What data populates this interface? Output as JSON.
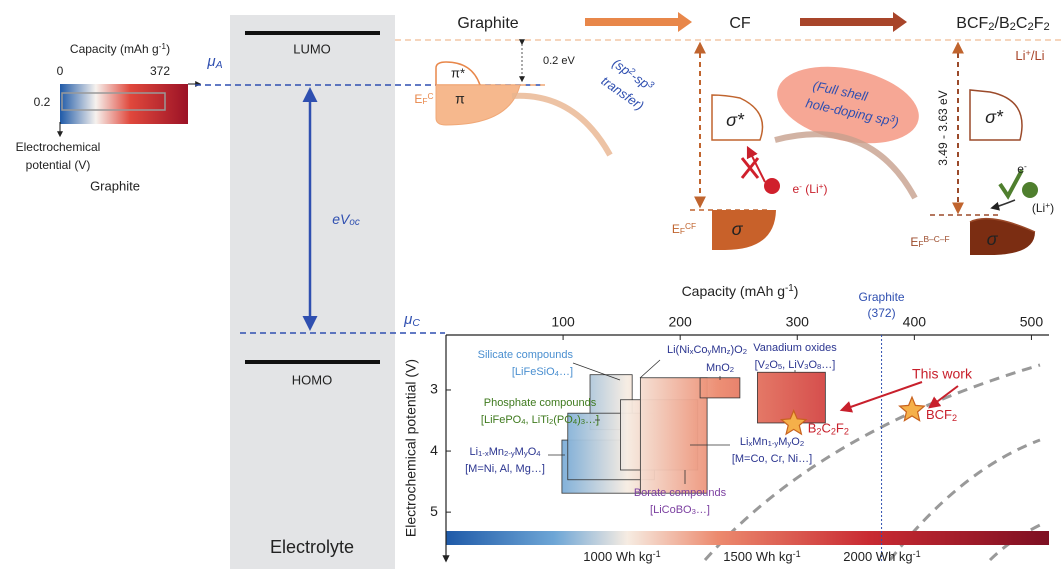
{
  "left_inset": {
    "title": [
      "Capacity (mAh g",
      {
        "sup": "-1"
      },
      ")"
    ],
    "xticks": [
      "0",
      "372"
    ],
    "ytick": "0.2",
    "ylabel": [
      "Electrochemical",
      "potential (V)"
    ],
    "caption": "Graphite"
  },
  "levels": {
    "mu_a": [
      "μ",
      {
        "sub": "A"
      }
    ],
    "mu_c": [
      "μ",
      {
        "sub": "C"
      }
    ],
    "lumo": "LUMO",
    "homo": "HOMO",
    "electrolyte": "Electrolyte",
    "voc": [
      "eV",
      {
        "sub": "oc"
      }
    ]
  },
  "stages": {
    "graphite": "Graphite",
    "cf": "CF",
    "bcf": [
      "BCF",
      {
        "sub": "2"
      },
      "/B",
      {
        "sub": "2"
      },
      "C",
      {
        "sub": "2"
      },
      "F",
      {
        "sub": "2"
      }
    ],
    "li_ref": [
      "Li",
      {
        "sup": "+"
      },
      "/Li"
    ]
  },
  "graphite_dos": {
    "pi_star": "π*",
    "pi": "π",
    "gap": "0.2 eV",
    "fermi": [
      "E",
      {
        "sub": "F"
      },
      {
        "sup": "C"
      }
    ]
  },
  "transfer": {
    "line1": [
      "(sp",
      {
        "sup": "2"
      },
      "-sp",
      {
        "sup": "3"
      }
    ],
    "line2": "transfer)"
  },
  "cf": {
    "sigma_star": "σ*",
    "sigma": "σ",
    "electron": [
      "e",
      {
        "sup": "-"
      },
      " (Li",
      {
        "sup": "+"
      },
      ")"
    ],
    "fermi": [
      "E",
      {
        "sub": "F"
      },
      {
        "sup": "CF"
      }
    ]
  },
  "doping": {
    "line1": "(Full shell",
    "line2": [
      "hole-doping sp",
      {
        "sup": "3"
      },
      ")"
    ]
  },
  "bcf": {
    "sigma_star": "σ*",
    "sigma": "σ",
    "gap": "3.49 - 3.63 eV",
    "electron": [
      "e",
      {
        "sup": "-"
      }
    ],
    "ion": [
      "(Li",
      {
        "sup": "+"
      },
      ")"
    ],
    "fermi": [
      "E",
      {
        "sub": "F"
      },
      {
        "sup": "B–C–F"
      }
    ]
  },
  "chart": {
    "type": "range-box",
    "xlabel": [
      "Capacity (mAh g",
      {
        "sup": "-1"
      },
      ")"
    ],
    "ylabel": "Electrochemical potential (V)",
    "xlim": [
      0,
      515
    ],
    "xticks": [
      100,
      200,
      300,
      400,
      500
    ],
    "ylim": [
      2.1,
      5.8
    ],
    "yticks": [
      3,
      4,
      5
    ],
    "graphite": {
      "value": 372,
      "label": [
        "Graphite",
        "(372)"
      ]
    },
    "boxes": [
      {
        "capacity": [
          99,
          166
        ],
        "voltage": [
          3.82,
          4.69
        ]
      },
      {
        "capacity": [
          123,
          159
        ],
        "voltage": [
          2.75,
          3.65
        ]
      },
      {
        "capacity": [
          104,
          178
        ],
        "voltage": [
          3.38,
          4.47
        ]
      },
      {
        "capacity": [
          149,
          215
        ],
        "voltage": [
          3.16,
          4.31
        ]
      },
      {
        "capacity": [
          166,
          223
        ],
        "voltage": [
          2.8,
          4.69
        ]
      },
      {
        "capacity": [
          217,
          251
        ],
        "voltage": [
          2.8,
          3.13
        ]
      },
      {
        "capacity": [
          266,
          324
        ],
        "voltage": [
          2.71,
          3.54
        ]
      }
    ],
    "families": [
      {
        "name": "Silicate compounds",
        "examples": [
          "[LiFeSiO",
          {
            "sub": "4"
          },
          "…]"
        ],
        "color": "#4a8fd0"
      },
      {
        "name": [
          "Li(Ni",
          {
            "sub": "x"
          },
          "Co",
          {
            "sub": "y"
          },
          "Mn",
          {
            "sub": "z"
          },
          ")O",
          {
            "sub": "2"
          }
        ],
        "color": "#2b3590"
      },
      {
        "name": [
          "MnO",
          {
            "sub": "2"
          }
        ],
        "color": "#2b3590"
      },
      {
        "name": "Phosphate compounds",
        "examples": [
          "[LiFePO",
          {
            "sub": "4"
          },
          ", LiTi",
          {
            "sub": "2"
          },
          "(PO",
          {
            "sub": "4"
          },
          ")",
          {
            "sub": "3"
          },
          "…]"
        ],
        "color": "#3f7a1e"
      },
      {
        "name": [
          "Li",
          {
            "sub": "1-x"
          },
          "Mn",
          {
            "sub": "2-y"
          },
          "M",
          {
            "sub": "y"
          },
          "O",
          {
            "sub": "4"
          }
        ],
        "examples": "[M=Ni, Al, Mg…]",
        "color": "#2b3590"
      },
      {
        "name": [
          "Li",
          {
            "sub": "x"
          },
          "Mn",
          {
            "sub": "1-y"
          },
          "M",
          {
            "sub": "y"
          },
          "O",
          {
            "sub": "2"
          }
        ],
        "examples": "[M=Co, Cr, Ni…]",
        "color": "#2b3590"
      },
      {
        "name": "Borate compounds",
        "examples": [
          "[LiCoBO",
          {
            "sub": "3"
          },
          "…]"
        ],
        "color": "#7b3fa0"
      },
      {
        "name": "Vanadium oxides",
        "examples": [
          "[V",
          {
            "sub": "2"
          },
          "O",
          {
            "sub": "5"
          },
          ", LiV",
          {
            "sub": "3"
          },
          "O",
          {
            "sub": "8"
          },
          "…]"
        ],
        "color": "#2b3590"
      }
    ],
    "this_work": "This work",
    "points": [
      {
        "name": [
          "B",
          {
            "sub": "2"
          },
          "C",
          {
            "sub": "2"
          },
          "F",
          {
            "sub": "2"
          }
        ],
        "capacity": 297,
        "voltage": 3.55
      },
      {
        "name": [
          "BCF",
          {
            "sub": "2"
          }
        ],
        "capacity": 398,
        "voltage": 3.33
      }
    ],
    "colorbar_labels": [
      [
        "1000 Wh kg",
        {
          "sup": "-1"
        }
      ],
      [
        "1500 Wh kg",
        {
          "sup": "-1"
        }
      ],
      [
        "2000 Wh kg",
        {
          "sup": "-1"
        }
      ]
    ]
  }
}
